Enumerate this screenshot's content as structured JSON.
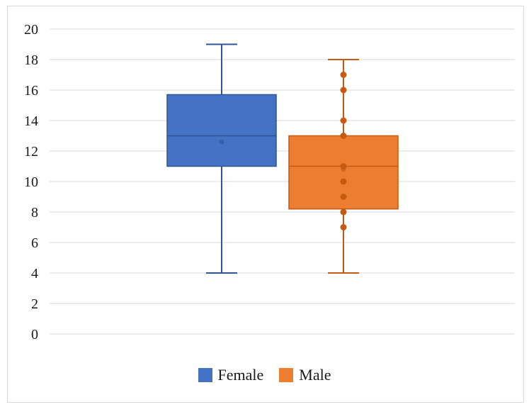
{
  "chart_data": {
    "type": "box",
    "title": "",
    "xlabel": "",
    "ylabel": "",
    "ylim": [
      0,
      20
    ],
    "y_ticks": [
      "0",
      "2",
      "4",
      "6",
      "8",
      "10",
      "12",
      "14",
      "16",
      "18",
      "20"
    ],
    "grid": true,
    "legend_position": "bottom",
    "series": [
      {
        "name": "Female",
        "color": "#4472c4",
        "border": "#2f5597",
        "min": 4,
        "q1": 11,
        "median": 13,
        "mean": 12.6,
        "q3": 15.7,
        "max": 19,
        "points": []
      },
      {
        "name": "Male",
        "color": "#ed7d31",
        "border": "#c55a11",
        "min": 4,
        "q1": 8.2,
        "median": 11,
        "mean": 10.8,
        "q3": 13,
        "max": 18,
        "points": [
          17,
          16,
          14,
          13,
          11,
          10,
          9,
          8,
          7
        ]
      }
    ]
  }
}
